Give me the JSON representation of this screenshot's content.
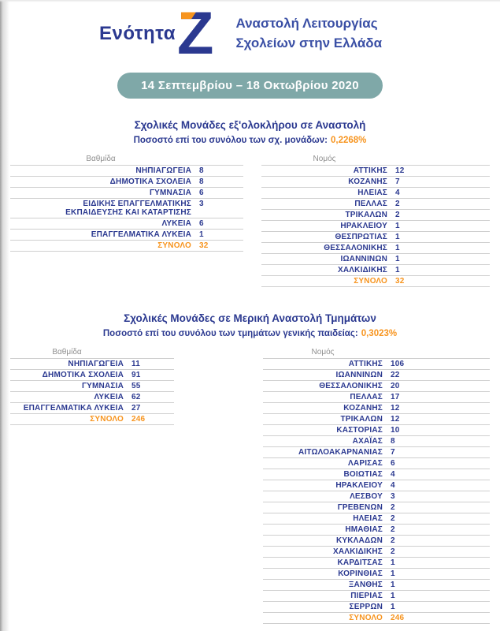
{
  "header": {
    "section_label": "Ενότητα",
    "section_letter": "Z",
    "title_line1": "Αναστολή Λειτουργίας",
    "title_line2": "Σχολείων στην Ελλάδα",
    "date_range": "14 Σεπτεμβρίου – 18 Οκτωβρίου 2020"
  },
  "colors": {
    "navy": "#2b3990",
    "title_blue": "#3a4fa5",
    "orange": "#f7941e",
    "teal": "#7fa8a8",
    "header_gray": "#8f8f8f",
    "line_gray": "#cfcfcf"
  },
  "sections": [
    {
      "heading": "Σχολικές Μονάδες εξ'ολοκλήρου σε Αναστολή",
      "subtitle_label": "Ποσοστό επί του συνόλου των σχ. μονάδων:",
      "subtitle_value": "0,2268%",
      "left": {
        "header": "Βαθμίδα",
        "rows": [
          [
            "ΝΗΠΙΑΓΩΓΕΙΑ",
            "8"
          ],
          [
            "ΔΗΜΟΤΙΚΑ ΣΧΟΛΕΙΑ",
            "8"
          ],
          [
            "ΓΥΜΝΑΣΙΑ",
            "6"
          ],
          [
            "ΕΙΔΙΚΗΣ ΕΠΑΓΓΕΛΜΑΤΙΚΗΣ\nΕΚΠΑΙΔΕΥΣΗΣ ΚΑΙ ΚΑΤΑΡΤΙΣΗΣ",
            "3"
          ],
          [
            "ΛΥΚΕΙΑ",
            "6"
          ],
          [
            "ΕΠΑΓΓΕΛΜΑΤΙΚΑ ΛΥΚΕΙΑ",
            "1"
          ]
        ],
        "total_label": "ΣΥΝΟΛΟ",
        "total_value": "32"
      },
      "right": {
        "header": "Νομός",
        "rows": [
          [
            "ΑΤΤΙΚΗΣ",
            "12"
          ],
          [
            "ΚΟΖΑΝΗΣ",
            "7"
          ],
          [
            "ΗΛΕΙΑΣ",
            "4"
          ],
          [
            "ΠΕΛΛΑΣ",
            "2"
          ],
          [
            "ΤΡΙΚΑΛΩΝ",
            "2"
          ],
          [
            "ΗΡΑΚΛΕΙΟΥ",
            "1"
          ],
          [
            "ΘΕΣΠΡΩΤΙΑΣ",
            "1"
          ],
          [
            "ΘΕΣΣΑΛΟΝΙΚΗΣ",
            "1"
          ],
          [
            "ΙΩΑΝΝΙΝΩΝ",
            "1"
          ],
          [
            "ΧΑΛΚΙΔΙΚΗΣ",
            "1"
          ]
        ],
        "total_label": "ΣΥΝΟΛΟ",
        "total_value": "32"
      }
    },
    {
      "heading": "Σχολικές Μονάδες σε Μερική Αναστολή Τμημάτων",
      "subtitle_label": "Ποσοστό επί του συνόλου των τμημάτων γενικής παιδείας:",
      "subtitle_value": "0,3023%",
      "left": {
        "header": "Βαθμίδα",
        "rows": [
          [
            "ΝΗΠΙΑΓΩΓΕΙΑ",
            "11"
          ],
          [
            "ΔΗΜΟΤΙΚΑ ΣΧΟΛΕΙΑ",
            "91"
          ],
          [
            "ΓΥΜΝΑΣΙΑ",
            "55"
          ],
          [
            "ΛΥΚΕΙΑ",
            "62"
          ],
          [
            "ΕΠΑΓΓΕΛΜΑΤΙΚΑ ΛΥΚΕΙΑ",
            "27"
          ]
        ],
        "total_label": "ΣΥΝΟΛΟ",
        "total_value": "246"
      },
      "right": {
        "header": "Νομός",
        "rows": [
          [
            "ΑΤΤΙΚΗΣ",
            "106"
          ],
          [
            "ΙΩΑΝΝΙΝΩΝ",
            "22"
          ],
          [
            "ΘΕΣΣΑΛΟΝΙΚΗΣ",
            "20"
          ],
          [
            "ΠΕΛΛΑΣ",
            "17"
          ],
          [
            "ΚΟΖΑΝΗΣ",
            "12"
          ],
          [
            "ΤΡΙΚΑΛΩΝ",
            "12"
          ],
          [
            "ΚΑΣΤΟΡΙΑΣ",
            "10"
          ],
          [
            "ΑΧΑΪΑΣ",
            "8"
          ],
          [
            "ΑΙΤΩΛΟΑΚΑΡΝΑΝΙΑΣ",
            "7"
          ],
          [
            "ΛΑΡΙΣΑΣ",
            "6"
          ],
          [
            "ΒΟΙΩΤΙΑΣ",
            "4"
          ],
          [
            "ΗΡΑΚΛΕΙΟΥ",
            "4"
          ],
          [
            "ΛΕΣΒΟΥ",
            "3"
          ],
          [
            "ΓΡΕΒΕΝΩΝ",
            "2"
          ],
          [
            "ΗΛΕΙΑΣ",
            "2"
          ],
          [
            "ΗΜΑΘΙΑΣ",
            "2"
          ],
          [
            "ΚΥΚΛΑΔΩΝ",
            "2"
          ],
          [
            "ΧΑΛΚΙΔΙΚΗΣ",
            "2"
          ],
          [
            "ΚΑΡΔΙΤΣΑΣ",
            "1"
          ],
          [
            "ΚΟΡΙΝΘΙΑΣ",
            "1"
          ],
          [
            "ΞΑΝΘΗΣ",
            "1"
          ],
          [
            "ΠΙΕΡΙΑΣ",
            "1"
          ],
          [
            "ΣΕΡΡΩΝ",
            "1"
          ]
        ],
        "total_label": "ΣΥΝΟΛΟ",
        "total_value": "246"
      }
    }
  ]
}
